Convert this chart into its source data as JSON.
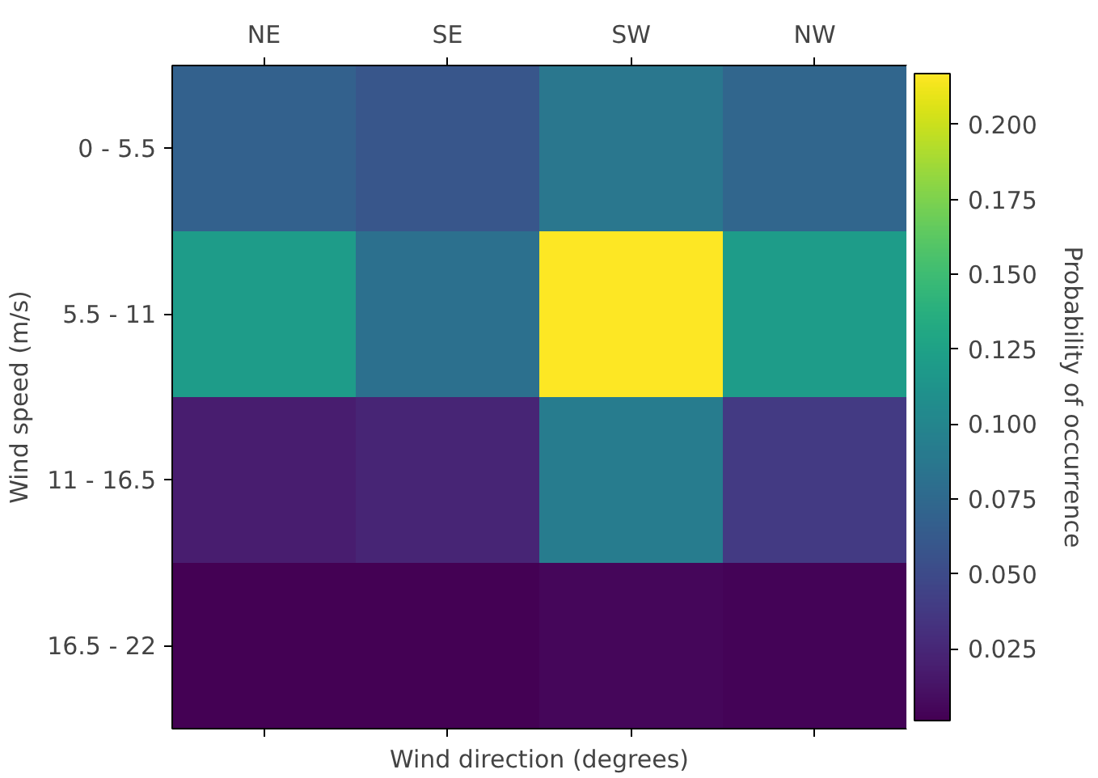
{
  "chart_data": {
    "type": "heatmap",
    "xlabel": "Wind direction (degrees)",
    "ylabel": "Wind speed (m/s)",
    "clabel": "Probability of occurrence",
    "categories": [
      "NE",
      "SE",
      "SW",
      "NW"
    ],
    "y_categories": [
      "0 - 5.5",
      "5.5 - 11",
      "11 - 16.5",
      "16.5 - 22"
    ],
    "cells": [
      [
        0.068,
        0.059,
        0.087,
        0.072
      ],
      [
        0.12,
        0.081,
        0.217,
        0.12
      ],
      [
        0.018,
        0.023,
        0.092,
        0.038
      ],
      [
        0.001,
        0.001,
        0.005,
        0.003
      ]
    ],
    "clim": [
      0.001,
      0.217
    ],
    "cticks": [
      0.025,
      {
        "value": 0.05,
        "label": "0.050"
      },
      0.075,
      {
        "value": 0.1,
        "label": "0.100"
      },
      0.125,
      {
        "value": 0.15,
        "label": "0.150"
      },
      0.175,
      {
        "value": 0.2,
        "label": "0.200"
      }
    ]
  }
}
